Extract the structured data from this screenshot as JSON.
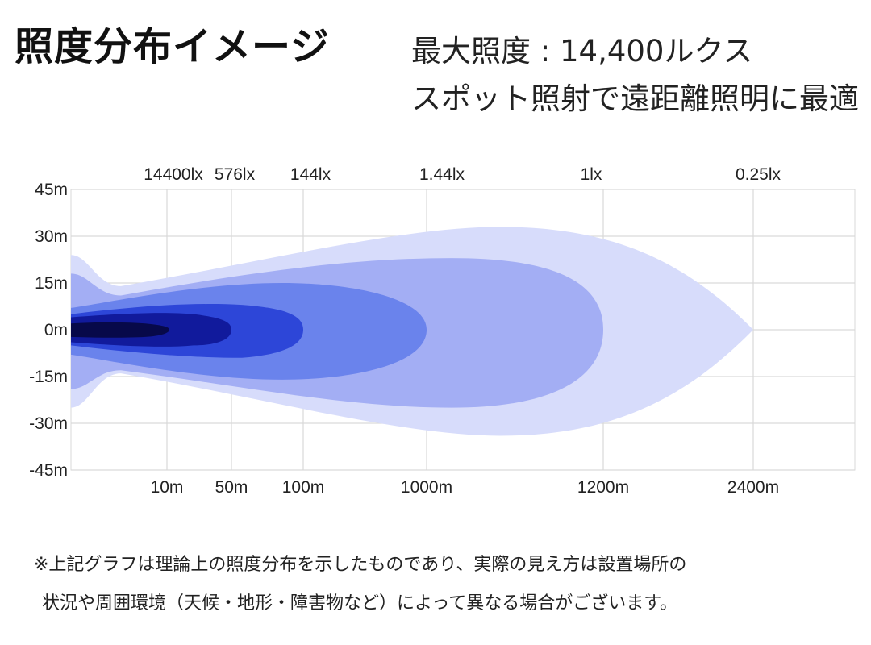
{
  "header": {
    "title": "照度分布イメージ",
    "subtitle_line1": "最大照度 : 14,400ルクス",
    "subtitle_line2": "スポット照射で遠距離照明に最適"
  },
  "chart_data": {
    "type": "area",
    "title": "照度分布イメージ",
    "x_ticks": [
      "10m",
      "50m",
      "100m",
      "1000m",
      "1200m",
      "2400m"
    ],
    "lux_labels": [
      "14400lx",
      "576lx",
      "144lx",
      "1.44lx",
      "1lx",
      "0.25lx"
    ],
    "y_ticks": [
      "45m",
      "30m",
      "15m",
      "0m",
      "-15m",
      "-30m",
      "-45m"
    ],
    "ylim": [
      -45,
      45
    ],
    "grid": true,
    "series": [
      {
        "name": "0.25lx",
        "color": "#d7dcfb",
        "reach": "2400m",
        "half_width_m": 34
      },
      {
        "name": "1lx",
        "color": "#a3aef4",
        "reach": "1200m",
        "half_width_m": 24
      },
      {
        "name": "1.44lx",
        "color": "#6a83ec",
        "reach": "1000m",
        "half_width_m": 15
      },
      {
        "name": "144lx",
        "color": "#2d46d8",
        "reach": "100m",
        "half_width_m": 7
      },
      {
        "name": "576lx",
        "color": "#111a9c",
        "reach": "50m",
        "half_width_m": 4
      },
      {
        "name": "14400lx",
        "color": "#07094a",
        "reach": "10m",
        "half_width_m": 2
      }
    ]
  },
  "notes": {
    "line1": "※上記グラフは理論上の照度分布を示したものであり、実際の見え方は設置場所の",
    "line2": "状況や周囲環境（天候・地形・障害物など）によって異なる場合がございます。"
  }
}
